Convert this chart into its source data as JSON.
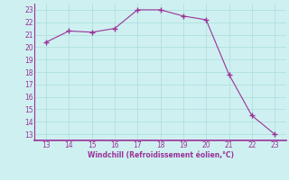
{
  "x": [
    13,
    14,
    15,
    16,
    17,
    18,
    19,
    20,
    21,
    22,
    23
  ],
  "y": [
    20.4,
    21.3,
    21.2,
    21.5,
    23.0,
    23.0,
    22.5,
    22.2,
    17.8,
    14.5,
    13.0
  ],
  "line_color": "#993399",
  "marker": "+",
  "marker_size": 4,
  "bg_color": "#cff0f0",
  "grid_color": "#aadddd",
  "xlabel": "Windchill (Refroidissement éolien,°C)",
  "xlabel_color": "#993399",
  "tick_color": "#993399",
  "spine_color": "#993399",
  "xlim": [
    12.5,
    23.5
  ],
  "ylim": [
    12.5,
    23.5
  ],
  "xticks": [
    13,
    14,
    15,
    16,
    17,
    18,
    19,
    20,
    21,
    22,
    23
  ],
  "yticks": [
    13,
    14,
    15,
    16,
    17,
    18,
    19,
    20,
    21,
    22,
    23
  ]
}
